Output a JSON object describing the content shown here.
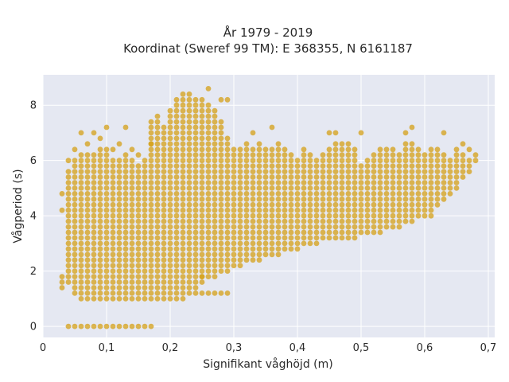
{
  "chart_data": {
    "type": "scatter",
    "title": "År 1979 - 2019",
    "subtitle": "Koordinat (Sweref 99 TM): E 368355, N 6161187",
    "xlabel": "Signifikant våghöjd (m)",
    "ylabel": "Vågperiod (s)",
    "xlim": [
      0,
      0.71
    ],
    "ylim": [
      -0.4,
      9.1
    ],
    "xticks": [
      0,
      0.1,
      0.2,
      0.3,
      0.4,
      0.5,
      0.6,
      0.7
    ],
    "xtick_labels": [
      "0",
      "0,1",
      "0,2",
      "0,3",
      "0,4",
      "0,5",
      "0,6",
      "0,7"
    ],
    "yticks": [
      0,
      2,
      4,
      6,
      8
    ],
    "ytick_labels": [
      "0",
      "2",
      "4",
      "6",
      "8"
    ],
    "grid": true,
    "legend": "none",
    "marker_color": "#D4A017",
    "background_color": "#E5E8F2",
    "x_step": 0.01,
    "y_step": 0.2,
    "columns": [
      {
        "x": 0.03,
        "ymin": 1.4,
        "ymax": 1.8,
        "extra": [
          4.2,
          4.8
        ]
      },
      {
        "x": 0.04,
        "ymin": 1.6,
        "ymax": 5.6,
        "extra": [
          0,
          6.0
        ]
      },
      {
        "x": 0.05,
        "ymin": 1.2,
        "ymax": 6.0,
        "extra": [
          0,
          6.4
        ]
      },
      {
        "x": 0.06,
        "ymin": 1.0,
        "ymax": 6.2,
        "extra": [
          0,
          7.0
        ]
      },
      {
        "x": 0.07,
        "ymin": 1.0,
        "ymax": 6.2,
        "extra": [
          0,
          6.6
        ]
      },
      {
        "x": 0.08,
        "ymin": 1.0,
        "ymax": 6.2,
        "extra": [
          0,
          7.0
        ]
      },
      {
        "x": 0.09,
        "ymin": 1.0,
        "ymax": 6.4,
        "extra": [
          0,
          6.8
        ]
      },
      {
        "x": 0.1,
        "ymin": 1.0,
        "ymax": 6.4,
        "extra": [
          0,
          7.2
        ]
      },
      {
        "x": 0.11,
        "ymin": 1.0,
        "ymax": 6.0,
        "extra": [
          0,
          6.4
        ]
      },
      {
        "x": 0.12,
        "ymin": 1.0,
        "ymax": 6.0,
        "extra": [
          0,
          6.6
        ]
      },
      {
        "x": 0.13,
        "ymin": 1.0,
        "ymax": 6.2,
        "extra": [
          0,
          7.2
        ]
      },
      {
        "x": 0.14,
        "ymin": 1.0,
        "ymax": 6.0,
        "extra": [
          0,
          6.4
        ]
      },
      {
        "x": 0.15,
        "ymin": 1.0,
        "ymax": 5.8,
        "extra": [
          0,
          6.2
        ]
      },
      {
        "x": 0.16,
        "ymin": 1.0,
        "ymax": 5.8,
        "extra": [
          0,
          6.0
        ]
      },
      {
        "x": 0.17,
        "ymin": 1.0,
        "ymax": 7.4,
        "extra": [
          0,
          6.6
        ]
      },
      {
        "x": 0.18,
        "ymin": 1.0,
        "ymax": 7.6,
        "extra": []
      },
      {
        "x": 0.19,
        "ymin": 1.0,
        "ymax": 7.2,
        "extra": []
      },
      {
        "x": 0.2,
        "ymin": 1.0,
        "ymax": 7.8,
        "extra": []
      },
      {
        "x": 0.21,
        "ymin": 1.0,
        "ymax": 8.2,
        "extra": []
      },
      {
        "x": 0.22,
        "ymin": 1.0,
        "ymax": 8.4,
        "extra": []
      },
      {
        "x": 0.23,
        "ymin": 1.2,
        "ymax": 8.4,
        "extra": []
      },
      {
        "x": 0.24,
        "ymin": 1.2,
        "ymax": 8.2,
        "extra": []
      },
      {
        "x": 0.25,
        "ymin": 1.6,
        "ymax": 8.2,
        "extra": [
          1.2,
          1.8
        ]
      },
      {
        "x": 0.26,
        "ymin": 1.8,
        "ymax": 8.0,
        "extra": [
          1.2,
          8.6
        ]
      },
      {
        "x": 0.27,
        "ymin": 1.8,
        "ymax": 7.8,
        "extra": [
          1.2
        ]
      },
      {
        "x": 0.28,
        "ymin": 2.0,
        "ymax": 7.4,
        "extra": [
          1.2,
          8.2
        ]
      },
      {
        "x": 0.29,
        "ymin": 2.0,
        "ymax": 6.8,
        "extra": [
          1.2,
          8.2
        ]
      },
      {
        "x": 0.3,
        "ymin": 2.2,
        "ymax": 6.4,
        "extra": []
      },
      {
        "x": 0.31,
        "ymin": 2.2,
        "ymax": 6.4,
        "extra": []
      },
      {
        "x": 0.32,
        "ymin": 2.4,
        "ymax": 6.6,
        "extra": []
      },
      {
        "x": 0.33,
        "ymin": 2.4,
        "ymax": 6.4,
        "extra": [
          7.0
        ]
      },
      {
        "x": 0.34,
        "ymin": 2.4,
        "ymax": 6.6,
        "extra": []
      },
      {
        "x": 0.35,
        "ymin": 2.6,
        "ymax": 6.4,
        "extra": []
      },
      {
        "x": 0.36,
        "ymin": 2.6,
        "ymax": 6.4,
        "extra": [
          7.2
        ]
      },
      {
        "x": 0.37,
        "ymin": 2.6,
        "ymax": 6.6,
        "extra": []
      },
      {
        "x": 0.38,
        "ymin": 2.8,
        "ymax": 6.4,
        "extra": []
      },
      {
        "x": 0.39,
        "ymin": 2.8,
        "ymax": 6.2,
        "extra": []
      },
      {
        "x": 0.4,
        "ymin": 2.8,
        "ymax": 6.0,
        "extra": []
      },
      {
        "x": 0.41,
        "ymin": 3.0,
        "ymax": 6.4,
        "extra": []
      },
      {
        "x": 0.42,
        "ymin": 3.0,
        "ymax": 6.2,
        "extra": []
      },
      {
        "x": 0.43,
        "ymin": 3.0,
        "ymax": 6.0,
        "extra": []
      },
      {
        "x": 0.44,
        "ymin": 3.2,
        "ymax": 6.2,
        "extra": []
      },
      {
        "x": 0.45,
        "ymin": 3.2,
        "ymax": 6.4,
        "extra": [
          7.0
        ]
      },
      {
        "x": 0.46,
        "ymin": 3.2,
        "ymax": 6.6,
        "extra": [
          7.0
        ]
      },
      {
        "x": 0.47,
        "ymin": 3.2,
        "ymax": 6.6,
        "extra": []
      },
      {
        "x": 0.48,
        "ymin": 3.2,
        "ymax": 6.6,
        "extra": []
      },
      {
        "x": 0.49,
        "ymin": 3.2,
        "ymax": 6.4,
        "extra": []
      },
      {
        "x": 0.5,
        "ymin": 3.4,
        "ymax": 5.8,
        "extra": [
          7.0
        ]
      },
      {
        "x": 0.51,
        "ymin": 3.4,
        "ymax": 6.0,
        "extra": []
      },
      {
        "x": 0.52,
        "ymin": 3.4,
        "ymax": 6.2,
        "extra": []
      },
      {
        "x": 0.53,
        "ymin": 3.4,
        "ymax": 6.4,
        "extra": []
      },
      {
        "x": 0.54,
        "ymin": 3.6,
        "ymax": 6.4,
        "extra": []
      },
      {
        "x": 0.55,
        "ymin": 3.6,
        "ymax": 6.4,
        "extra": []
      },
      {
        "x": 0.56,
        "ymin": 3.6,
        "ymax": 6.2,
        "extra": []
      },
      {
        "x": 0.57,
        "ymin": 3.8,
        "ymax": 6.6,
        "extra": [
          7.0
        ]
      },
      {
        "x": 0.58,
        "ymin": 3.8,
        "ymax": 6.6,
        "extra": [
          7.2
        ]
      },
      {
        "x": 0.59,
        "ymin": 4.0,
        "ymax": 6.4,
        "extra": []
      },
      {
        "x": 0.6,
        "ymin": 4.0,
        "ymax": 6.2,
        "extra": []
      },
      {
        "x": 0.61,
        "ymin": 4.0,
        "ymax": 6.4,
        "extra": []
      },
      {
        "x": 0.62,
        "ymin": 4.4,
        "ymax": 6.4,
        "extra": []
      },
      {
        "x": 0.63,
        "ymin": 4.6,
        "ymax": 6.2,
        "extra": [
          7.0
        ]
      },
      {
        "x": 0.64,
        "ymin": 4.8,
        "ymax": 6.0,
        "extra": []
      },
      {
        "x": 0.65,
        "ymin": 5.0,
        "ymax": 6.2,
        "extra": [
          6.4
        ]
      },
      {
        "x": 0.66,
        "ymin": 5.4,
        "ymax": 6.2,
        "extra": [
          6.6
        ]
      },
      {
        "x": 0.67,
        "ymin": 5.6,
        "ymax": 6.0,
        "extra": [
          6.4
        ]
      },
      {
        "x": 0.68,
        "ymin": 6.0,
        "ymax": 6.2,
        "extra": []
      }
    ]
  }
}
